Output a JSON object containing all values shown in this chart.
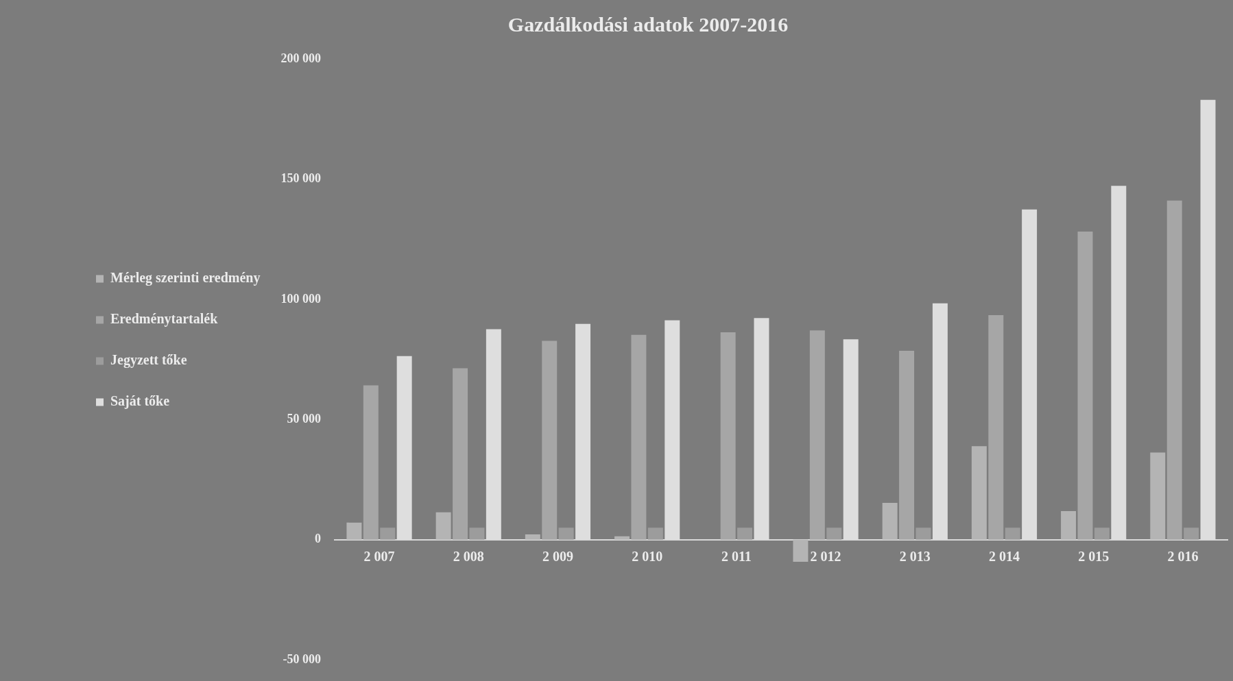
{
  "chart_data": {
    "type": "bar",
    "title": "Gazdálkodási adatok 2007-2016",
    "categories": [
      "2 007",
      "2 008",
      "2 009",
      "2 010",
      "2 011",
      "2 012",
      "2 013",
      "2 014",
      "2 015",
      "2 016"
    ],
    "series": [
      {
        "name": "Mérleg szerinti eredmény",
        "color": "#b4b4b4",
        "values": [
          7100,
          11400,
          2200,
          1400,
          0,
          -9200,
          15300,
          38900,
          11900,
          36300
        ]
      },
      {
        "name": "Eredménytartalék",
        "color": "#a6a6a6",
        "values": [
          64200,
          71300,
          82700,
          85200,
          86300,
          87100,
          78600,
          93400,
          128200,
          141100
        ]
      },
      {
        "name": "Jegyzett tőke",
        "color": "#9c9c9c",
        "values": [
          5000,
          5000,
          5000,
          5000,
          5000,
          5000,
          5000,
          5000,
          5000,
          5000
        ]
      },
      {
        "name": "Saját tőke",
        "color": "#dedede",
        "values": [
          76400,
          87600,
          89800,
          91300,
          92200,
          83400,
          98300,
          137400,
          147200,
          183000
        ]
      }
    ],
    "ylim": [
      -50000,
      200000
    ],
    "yticks": [
      {
        "value": -50000,
        "label": "-50 000"
      },
      0,
      {
        "value": 50000,
        "label": "50 000"
      },
      {
        "value": 100000,
        "label": "100 000"
      },
      {
        "value": 150000,
        "label": "150 000"
      },
      {
        "value": 200000,
        "label": "200 000"
      }
    ],
    "grid": false,
    "legend": "left"
  }
}
